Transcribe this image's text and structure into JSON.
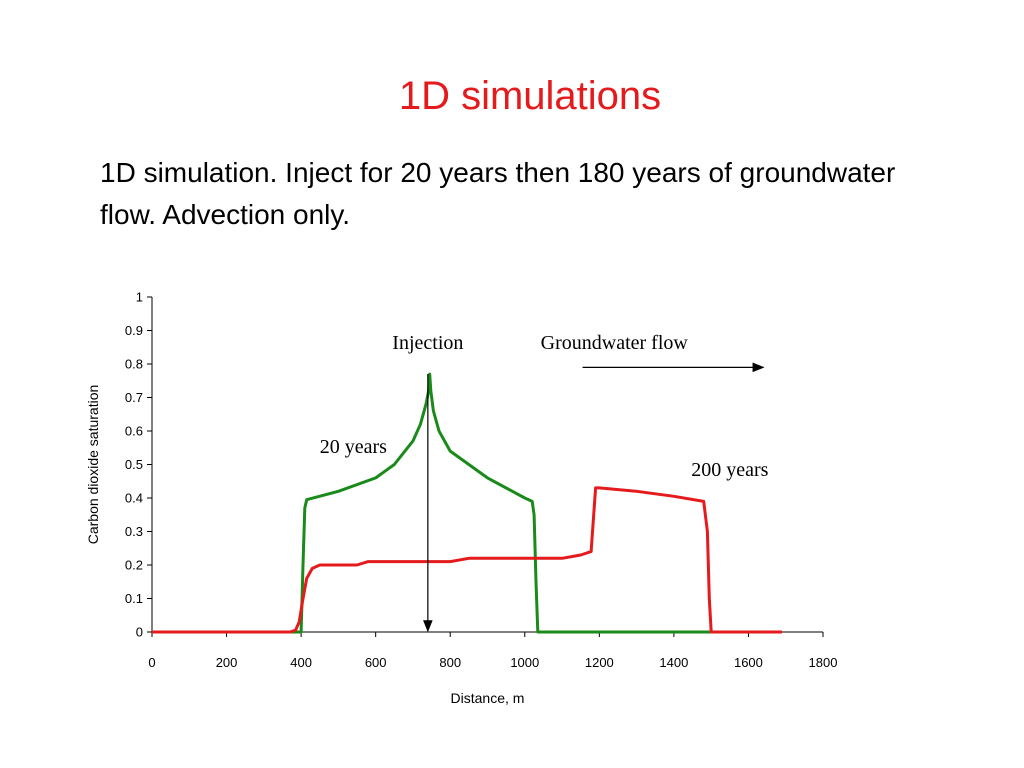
{
  "slide": {
    "title": "1D simulations",
    "body": "1D simulation.  Inject for 20 years then 180 years of groundwater flow.  Advection only."
  },
  "chart_data": {
    "type": "line",
    "xlabel": "Distance, m",
    "ylabel": "Carbon dioxide saturation",
    "xlim": [
      0,
      1800
    ],
    "ylim": [
      0,
      1
    ],
    "xticks": [
      "0",
      "200",
      "400",
      "600",
      "800",
      "1000",
      "1200",
      "1400",
      "1600",
      "1800"
    ],
    "yticks": [
      "0",
      "0.1",
      "0.2",
      "0.3",
      "0.4",
      "0.5",
      "0.6",
      "0.7",
      "0.8",
      "0.9",
      "1"
    ],
    "grid": false,
    "series": [
      {
        "name": "20 years",
        "color": "#1a8a1a",
        "x": [
          0,
          400,
          405,
          410,
          415,
          500,
          600,
          650,
          700,
          720,
          735,
          742,
          745,
          748,
          755,
          770,
          800,
          900,
          1000,
          1020,
          1025,
          1030,
          1035,
          1040,
          1200,
          1400,
          1500,
          1690
        ],
        "y": [
          0,
          0,
          0.2,
          0.37,
          0.395,
          0.42,
          0.46,
          0.5,
          0.57,
          0.62,
          0.68,
          0.72,
          0.77,
          0.72,
          0.66,
          0.6,
          0.54,
          0.46,
          0.4,
          0.39,
          0.35,
          0.15,
          0.0,
          0.0,
          0.0,
          0.0,
          0.0,
          0.0
        ]
      },
      {
        "name": "200 years",
        "color": "#e41a1c",
        "x": [
          0,
          370,
          385,
          395,
          405,
          415,
          430,
          450,
          550,
          580,
          800,
          850,
          1100,
          1150,
          1178,
          1185,
          1190,
          1200,
          1300,
          1400,
          1480,
          1490,
          1495,
          1500,
          1690
        ],
        "y": [
          0,
          0,
          0.005,
          0.03,
          0.1,
          0.16,
          0.19,
          0.2,
          0.2,
          0.21,
          0.21,
          0.22,
          0.22,
          0.23,
          0.24,
          0.35,
          0.43,
          0.43,
          0.42,
          0.405,
          0.39,
          0.3,
          0.1,
          0.0,
          0.0
        ]
      }
    ],
    "annotations": [
      {
        "text": "Injection",
        "x": 740,
        "y": 0.845
      },
      {
        "text": "Groundwater flow",
        "x": 1240,
        "y": 0.845
      },
      {
        "text": "20 years",
        "x": 540,
        "y": 0.535
      },
      {
        "text": "200 years",
        "x": 1550,
        "y": 0.465
      }
    ],
    "injection_arrow": {
      "x": 740,
      "y_from": 0.77,
      "y_to": 0
    },
    "flow_arrow": {
      "x_from": 1155,
      "x_to": 1640,
      "y": 0.79
    }
  }
}
